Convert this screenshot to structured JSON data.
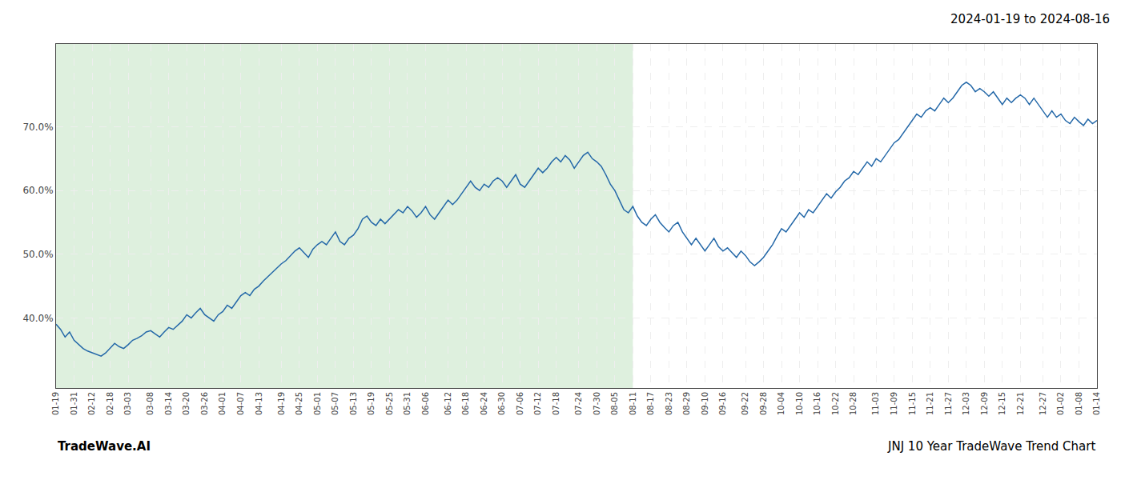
{
  "chart_data": {
    "type": "line",
    "title": "2024-01-19 to 2024-08-16",
    "annotations": [
      {
        "text": "TradeWave.AI"
      },
      {
        "text": "JNJ 10 Year TradeWave Trend Chart"
      }
    ],
    "color": "#2468a8",
    "shaded_range": {
      "from": "01-19",
      "to": "08-11",
      "color": "#c8e6c8"
    },
    "ylim": [
      29,
      83
    ],
    "yticks": [
      {
        "value": 40.0,
        "label": "40.0%"
      },
      {
        "value": 50.0,
        "label": "50.0%"
      },
      {
        "value": 60.0,
        "label": "60.0%"
      },
      {
        "value": 70.0,
        "label": "70.0%"
      }
    ],
    "grid": true,
    "categories": [
      "01-19",
      null,
      null,
      null,
      "01-31",
      null,
      null,
      null,
      "02-12",
      null,
      null,
      null,
      "02-18",
      null,
      null,
      null,
      "03-03",
      null,
      null,
      null,
      null,
      "03-08",
      null,
      null,
      null,
      "03-14",
      null,
      null,
      null,
      "03-20",
      null,
      null,
      null,
      "03-26",
      null,
      null,
      null,
      "04-01",
      null,
      null,
      null,
      "04-07",
      null,
      null,
      null,
      "04-13",
      null,
      null,
      null,
      null,
      "04-19",
      null,
      null,
      null,
      "04-25",
      null,
      null,
      null,
      "05-01",
      null,
      null,
      null,
      "05-07",
      null,
      null,
      null,
      "05-13",
      null,
      null,
      null,
      "05-19",
      null,
      null,
      null,
      "05-25",
      null,
      null,
      null,
      "05-31",
      null,
      null,
      null,
      "06-06",
      null,
      null,
      null,
      null,
      "06-12",
      null,
      null,
      null,
      "06-18",
      null,
      null,
      null,
      "06-24",
      null,
      null,
      null,
      "06-30",
      null,
      null,
      null,
      "07-06",
      null,
      null,
      null,
      "07-12",
      null,
      null,
      null,
      "07-18",
      null,
      null,
      null,
      null,
      "07-24",
      null,
      null,
      null,
      "07-30",
      null,
      null,
      null,
      "08-05",
      null,
      null,
      null,
      "08-11",
      null,
      null,
      null,
      "08-17",
      null,
      null,
      null,
      "08-23",
      null,
      null,
      null,
      "08-29",
      null,
      null,
      null,
      "09-10",
      null,
      null,
      null,
      "09-16",
      null,
      null,
      null,
      null,
      "09-22",
      null,
      null,
      null,
      "09-28",
      null,
      null,
      null,
      "10-04",
      null,
      null,
      null,
      "10-10",
      null,
      null,
      null,
      "10-16",
      null,
      null,
      null,
      "10-22",
      null,
      null,
      null,
      "10-28",
      null,
      null,
      null,
      null,
      "11-03",
      null,
      null,
      null,
      "11-09",
      null,
      null,
      null,
      "11-15",
      null,
      null,
      null,
      "11-21",
      null,
      null,
      null,
      "11-27",
      null,
      null,
      null,
      "12-03",
      null,
      null,
      null,
      "12-09",
      null,
      null,
      null,
      "12-15",
      null,
      null,
      null,
      "12-21",
      null,
      null,
      null,
      null,
      "12-27",
      null,
      null,
      null,
      "01-02",
      null,
      null,
      null,
      "01-08",
      null,
      null,
      null,
      "01-14"
    ],
    "values": [
      39.0,
      38.2,
      37.0,
      37.8,
      36.5,
      35.8,
      35.2,
      34.8,
      34.5,
      34.2,
      34.0,
      34.5,
      35.2,
      36.0,
      35.5,
      35.2,
      35.8,
      36.5,
      36.8,
      37.2,
      37.8,
      38.0,
      37.5,
      37.0,
      37.8,
      38.5,
      38.2,
      38.8,
      39.5,
      40.5,
      40.0,
      40.8,
      41.5,
      40.5,
      40.0,
      39.5,
      40.5,
      41.0,
      42.0,
      41.5,
      42.5,
      43.5,
      44.0,
      43.5,
      44.5,
      45.0,
      45.8,
      46.5,
      47.2,
      47.8,
      48.5,
      49.0,
      49.8,
      50.5,
      51.0,
      50.2,
      49.5,
      50.8,
      51.5,
      52.0,
      51.5,
      52.5,
      53.5,
      52.0,
      51.5,
      52.5,
      53.0,
      54.0,
      55.5,
      56.0,
      55.0,
      54.5,
      55.5,
      54.8,
      55.5,
      56.2,
      57.0,
      56.5,
      57.5,
      56.8,
      55.8,
      56.5,
      57.5,
      56.2,
      55.5,
      56.5,
      57.5,
      58.5,
      57.8,
      58.5,
      59.5,
      60.5,
      61.5,
      60.5,
      60.0,
      61.0,
      60.5,
      61.5,
      62.0,
      61.5,
      60.5,
      61.5,
      62.5,
      61.0,
      60.5,
      61.5,
      62.5,
      63.5,
      62.8,
      63.5,
      64.5,
      65.2,
      64.5,
      65.5,
      64.8,
      63.5,
      64.5,
      65.5,
      66.0,
      65.0,
      64.5,
      63.8,
      62.5,
      61.0,
      60.0,
      58.5,
      57.0,
      56.5,
      57.5,
      56.0,
      55.0,
      54.5,
      55.5,
      56.2,
      55.0,
      54.2,
      53.5,
      54.5,
      55.0,
      53.5,
      52.5,
      51.5,
      52.5,
      51.5,
      50.5,
      51.5,
      52.5,
      51.2,
      50.5,
      51.0,
      50.2,
      49.5,
      50.5,
      49.8,
      48.8,
      48.2,
      48.8,
      49.5,
      50.5,
      51.5,
      52.8,
      54.0,
      53.5,
      54.5,
      55.5,
      56.5,
      55.8,
      57.0,
      56.5,
      57.5,
      58.5,
      59.5,
      58.8,
      59.8,
      60.5,
      61.5,
      62.0,
      63.0,
      62.5,
      63.5,
      64.5,
      63.8,
      65.0,
      64.5,
      65.5,
      66.5,
      67.5,
      68.0,
      69.0,
      70.0,
      71.0,
      72.0,
      71.5,
      72.5,
      73.0,
      72.5,
      73.5,
      74.5,
      73.8,
      74.5,
      75.5,
      76.5,
      77.0,
      76.5,
      75.5,
      76.0,
      75.5,
      74.8,
      75.5,
      74.5,
      73.5,
      74.5,
      73.8,
      74.5,
      75.0,
      74.5,
      73.5,
      74.5,
      73.5,
      72.5,
      71.5,
      72.5,
      71.5,
      72.0,
      71.0,
      70.5,
      71.5,
      70.8,
      70.2,
      71.2,
      70.5,
      71.0
    ]
  }
}
